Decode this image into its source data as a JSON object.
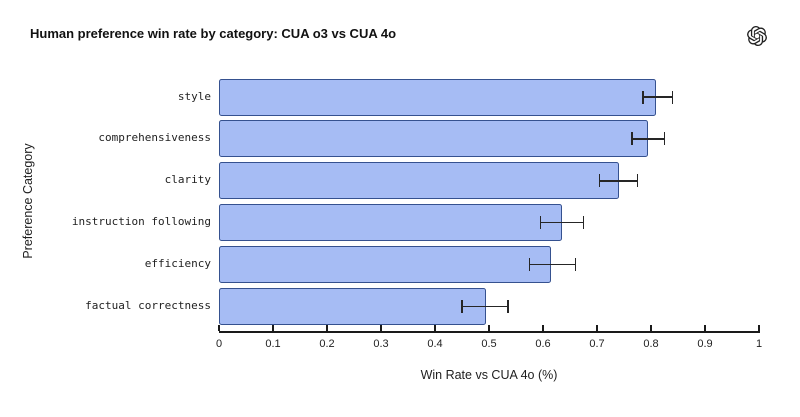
{
  "page": {
    "background": "#ffffff"
  },
  "header": {
    "title": "Human preference win rate by category: CUA o3 vs CUA 4o",
    "logo_icon": "openai-logo"
  },
  "chart_data": {
    "type": "bar",
    "orientation": "horizontal",
    "title": "Human preference win rate by category: CUA o3 vs CUA 4o",
    "xlabel": "Win Rate vs CUA 4o (%)",
    "ylabel": "Preference Category",
    "categories": [
      "style",
      "comprehensiveness",
      "clarity",
      "instruction following",
      "efficiency",
      "factual correctness"
    ],
    "values": [
      0.81,
      0.795,
      0.74,
      0.635,
      0.615,
      0.495
    ],
    "error_low": [
      0.785,
      0.765,
      0.705,
      0.595,
      0.575,
      0.45
    ],
    "error_high": [
      0.84,
      0.825,
      0.775,
      0.675,
      0.66,
      0.535
    ],
    "xlim": [
      0,
      1
    ],
    "xticks": [
      0,
      0.1,
      0.2,
      0.3,
      0.4,
      0.5,
      0.6,
      0.7,
      0.8,
      0.9,
      1
    ],
    "xtick_labels": [
      "0",
      "0.1",
      "0.2",
      "0.3",
      "0.4",
      "0.5",
      "0.6",
      "0.7",
      "0.8",
      "0.9",
      "1"
    ],
    "grid": false,
    "legend": null,
    "error_bars": true,
    "colors": {
      "bar_fill": "#a6bcf4",
      "bar_border": "#35518f",
      "error_bar": "#262626",
      "axis": "#1a1a1a",
      "text": "#1f1f1f",
      "background": "#ffffff"
    }
  }
}
